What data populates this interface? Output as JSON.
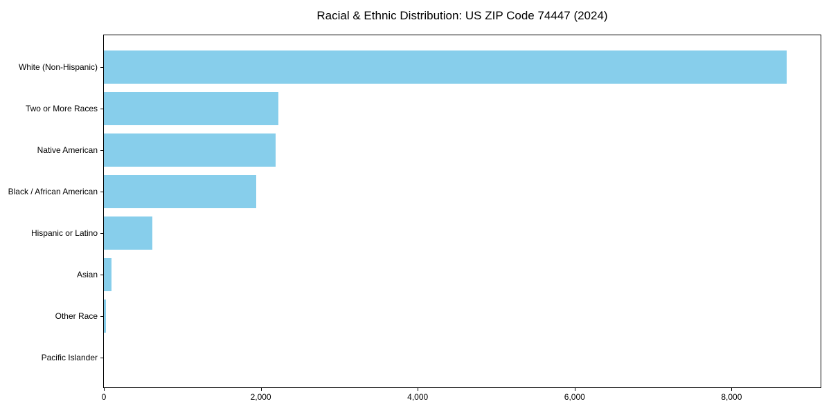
{
  "chart_data": {
    "type": "bar",
    "orientation": "horizontal",
    "title": "Racial & Ethnic Distribution: US ZIP Code 74447 (2024)",
    "categories": [
      "White (Non-Hispanic)",
      "Two or More Races",
      "Native American",
      "Black / African American",
      "Hispanic or Latino",
      "Asian",
      "Other Race",
      "Pacific Islander"
    ],
    "values": [
      8700,
      2220,
      2185,
      1940,
      620,
      100,
      25,
      0
    ],
    "xlabel": "",
    "ylabel": "",
    "xlim": [
      0,
      9135
    ],
    "xticks": [
      0,
      2000,
      4000,
      6000,
      8000
    ],
    "xtick_labels": [
      "0",
      "2,000",
      "4,000",
      "6,000",
      "8,000"
    ],
    "bar_color": "#87CEEB",
    "text_color": "#000000",
    "grid": false,
    "legend": "none"
  }
}
